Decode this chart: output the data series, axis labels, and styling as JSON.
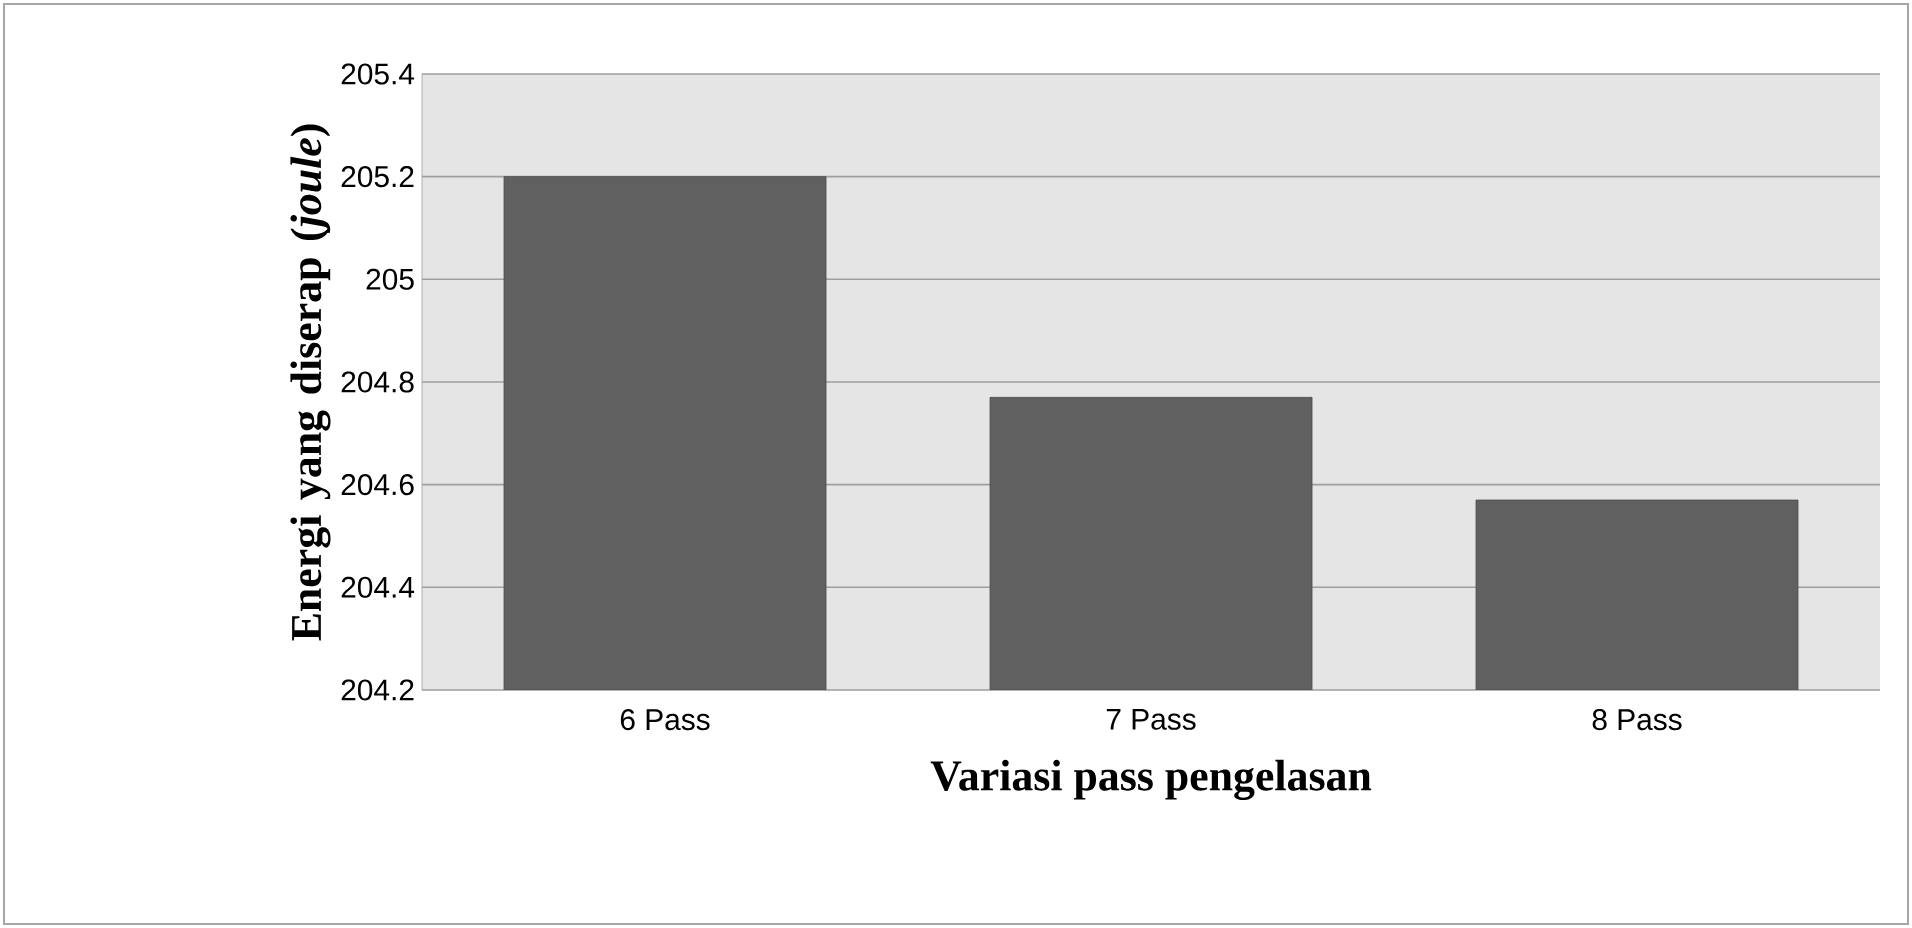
{
  "chart_data": {
    "type": "bar",
    "xlabel": "Variasi pass pengelasan",
    "ylabel": "Energi yang diserap (*joule*)",
    "categories": [
      "6 Pass",
      "7 Pass",
      "8 Pass"
    ],
    "values": [
      205.2,
      204.77,
      204.57
    ],
    "color": "#606060",
    "ylim": [
      204.2,
      205.4
    ],
    "yticks": [
      204.2,
      204.4,
      204.6,
      204.8,
      205,
      205.2,
      205.4
    ],
    "grid": "y"
  }
}
